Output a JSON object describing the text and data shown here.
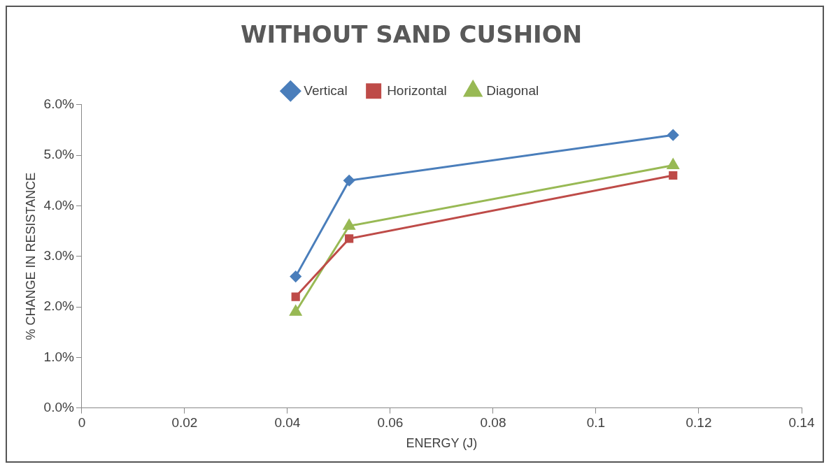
{
  "chart_data": {
    "type": "line",
    "title": "WITHOUT SAND CUSHION",
    "xlabel": "ENERGY (J)",
    "ylabel": "% CHANGE IN RESISTANCE",
    "x": [
      0.0416,
      0.052,
      0.115
    ],
    "series": [
      {
        "name": "Vertical",
        "color": "#4a7ebb",
        "marker": "diamond",
        "values": [
          0.026,
          0.045,
          0.054
        ]
      },
      {
        "name": "Horizontal",
        "color": "#be4b48",
        "marker": "square",
        "values": [
          0.022,
          0.0335,
          0.046
        ]
      },
      {
        "name": "Diagonal",
        "color": "#98b954",
        "marker": "triangle",
        "values": [
          0.019,
          0.036,
          0.048
        ]
      }
    ],
    "xlim": [
      0,
      0.14
    ],
    "xticks": [
      0,
      0.02,
      0.04,
      0.06,
      0.08,
      0.1,
      0.12,
      0.14
    ],
    "ylim": [
      0,
      0.06
    ],
    "yticks": [
      {
        "value": 0,
        "label": "0.0%"
      },
      {
        "value": 0.01,
        "label": "1.0%"
      },
      {
        "value": 0.02,
        "label": "2.0%"
      },
      {
        "value": 0.03,
        "label": "3.0%"
      },
      {
        "value": 0.04,
        "label": "4.0%"
      },
      {
        "value": 0.05,
        "label": "5.0%"
      },
      {
        "value": 0.06,
        "label": "6.0%"
      }
    ],
    "grid": false,
    "legend": "top",
    "line_style": "solid"
  }
}
